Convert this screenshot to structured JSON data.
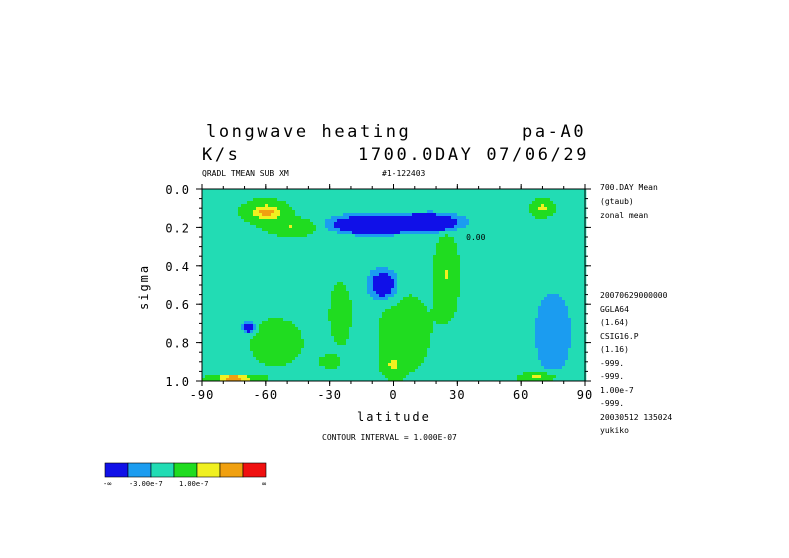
{
  "header": {
    "title_left": "longwave heating",
    "title_right": "pa-A0",
    "units": "K/s",
    "date": "1700.0DAY 07/06/29",
    "var_info": "QRADL TMEAN SUB XM",
    "run_id": "#1-122403"
  },
  "side_info": {
    "lines": [
      "700.DAY Mean",
      "(gtaub)",
      "zonal mean"
    ],
    "lines2": [
      "20070629000000",
      "GGLA64",
      "(1.64)",
      "CSIG16.P",
      "(1.16)",
      "-999.",
      "-999.",
      "1.00e-7",
      "-999.",
      "20030512 135024",
      "yukiko"
    ]
  },
  "footer": {
    "contour_interval": "CONTOUR INTERVAL = 1.000E-07"
  },
  "colorbar": {
    "colors": [
      "#1010e8",
      "#1b9cf0",
      "#22dcb4",
      "#20dc20",
      "#f0f020",
      "#f0a010",
      "#f01010"
    ],
    "labels": [
      "-∞",
      "-3.00e-7",
      "1.00e-7",
      "∞"
    ]
  },
  "chart_data": {
    "type": "heatmap",
    "title": "longwave heating",
    "xlabel": "latitude",
    "ylabel": "sigma",
    "xlim": [
      -90,
      90
    ],
    "ylim": [
      1.0,
      0.0
    ],
    "x_ticks": [
      -90,
      -60,
      -30,
      0,
      30,
      60,
      90
    ],
    "y_ticks": [
      0.0,
      0.2,
      0.4,
      0.6,
      0.8,
      1.0
    ],
    "x_tick_labels": [
      "-90",
      "-60",
      "-30",
      "0",
      "30",
      "60",
      "90"
    ],
    "y_tick_labels": [
      "0.0",
      "0.2",
      "0.4",
      "0.6",
      "0.8",
      "1.0"
    ],
    "units": "K/s",
    "contour_interval": 1e-07,
    "contour_labels": [
      "0.00"
    ],
    "levels": [
      -3e-07,
      -2e-07,
      -1e-07,
      0.0,
      1e-07,
      2e-07
    ],
    "background_value": -1.5e-07,
    "features": [
      {
        "lat": -60,
        "sigma": 0.12,
        "value": 4e-07,
        "w": 9,
        "h": 0.05
      },
      {
        "lat": -48,
        "sigma": 0.2,
        "value": 2.5e-07,
        "w": 10,
        "h": 0.04
      },
      {
        "lat": 0,
        "sigma": 0.14,
        "value": 2.2e-07,
        "w": 15,
        "h": 0.04
      },
      {
        "lat": -10,
        "sigma": 0.19,
        "value": -6.5e-07,
        "w": 14,
        "h": 0.035
      },
      {
        "lat": 15,
        "sigma": 0.18,
        "value": -6e-07,
        "w": 12,
        "h": 0.035
      },
      {
        "lat": 2,
        "sigma": 0.16,
        "value": -4e-07,
        "w": 20,
        "h": 0.04
      },
      {
        "lat": 70,
        "sigma": 0.1,
        "value": 3e-07,
        "w": 5,
        "h": 0.04
      },
      {
        "lat": 25,
        "sigma": 0.45,
        "value": 2.5e-07,
        "w": 5,
        "h": 0.18
      },
      {
        "lat": -25,
        "sigma": 0.65,
        "value": 2.5e-07,
        "w": 4,
        "h": 0.13
      },
      {
        "lat": -5,
        "sigma": 0.5,
        "value": -3.5e-07,
        "w": 6,
        "h": 0.07
      },
      {
        "lat": -68,
        "sigma": 0.72,
        "value": -3.5e-07,
        "w": 2.5,
        "h": 0.03
      },
      {
        "lat": 0,
        "sigma": 0.92,
        "value": 2.5e-07,
        "w": 4,
        "h": 0.05
      },
      {
        "lat": -30,
        "sigma": 0.9,
        "value": 2e-07,
        "w": 4,
        "h": 0.03
      },
      {
        "lat": -75,
        "sigma": 0.985,
        "value": 5e-07,
        "w": 10,
        "h": 0.015
      },
      {
        "lat": 68,
        "sigma": 0.98,
        "value": 3e-07,
        "w": 8,
        "h": 0.02
      },
      {
        "lat": -55,
        "sigma": 0.8,
        "value": 1e-07,
        "w": 15,
        "h": 0.15
      },
      {
        "lat": 5,
        "sigma": 0.75,
        "value": 1e-07,
        "w": 15,
        "h": 0.25
      },
      {
        "lat": 75,
        "sigma": 0.75,
        "value": -1e-07,
        "w": 10,
        "h": 0.25
      }
    ]
  }
}
